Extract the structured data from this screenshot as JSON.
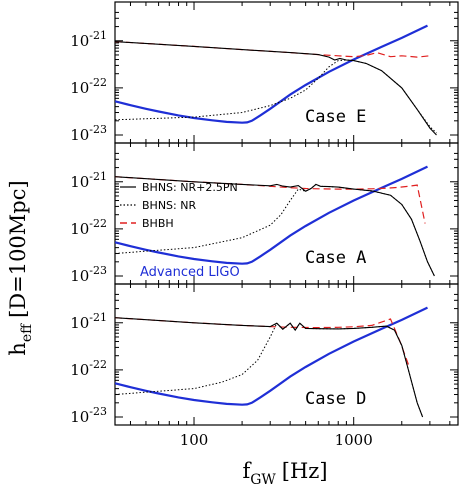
{
  "chart_data": {
    "type": "line",
    "xlabel": "f",
    "xlabel_sub": "GW",
    "xlabel_unit": "[Hz]",
    "ylabel": "h",
    "ylabel_sub": "eff",
    "ylabel_unit": "[D=100Mpc]",
    "x_scale": "log",
    "y_scale": "log",
    "xlim": [
      32,
      4500
    ],
    "ylim": [
      1e-23,
      4.5e-21
    ],
    "x_ticks": [
      100,
      1000
    ],
    "x_tick_labels": [
      "100",
      "1000"
    ],
    "y_ticks": [
      1e-23,
      1e-22,
      1e-21
    ],
    "y_tick_labels": [
      {
        "base": "10",
        "exp": "-23"
      },
      {
        "base": "10",
        "exp": "-22"
      },
      {
        "base": "10",
        "exp": "-21"
      }
    ],
    "grid": false,
    "legend_position": "top-left of middle panel",
    "legend": [
      {
        "label": "BHNS: NR+2.5PN",
        "color": "#000000",
        "style": "solid"
      },
      {
        "label": "BHNS: NR",
        "color": "#000000",
        "style": "dotted"
      },
      {
        "label": "BHBH",
        "color": "#e02020",
        "style": "dashed"
      }
    ],
    "annotation": {
      "text": "Advanced LIGO",
      "color": "#1f2fd6"
    },
    "ligo_curve": {
      "x": [
        32,
        40,
        50,
        60,
        80,
        100,
        130,
        160,
        200,
        215,
        230,
        260,
        300,
        400,
        500,
        700,
        1000,
        1500,
        2000,
        2900
      ],
      "y": [
        5.2e-23,
        4.3e-23,
        3.6e-23,
        3.15e-23,
        2.6e-23,
        2.3e-23,
        2.05e-23,
        1.9e-23,
        1.82e-23,
        1.85e-23,
        2e-23,
        2.6e-23,
        3.6e-23,
        7.2e-23,
        1.15e-22,
        2.2e-22,
        4e-22,
        7.5e-22,
        1.15e-21,
        2.1e-21
      ]
    },
    "panels": [
      {
        "label": "Case E",
        "bhbh": {
          "x": [
            32,
            100,
            200,
            400,
            600,
            800,
            1000,
            1200,
            1400,
            1700,
            2000,
            2500,
            3000
          ],
          "y": [
            9.6e-22,
            7.6e-22,
            6.5e-22,
            5.6e-22,
            5.1e-22,
            4.8e-22,
            4.6e-22,
            4.9e-22,
            5.6e-22,
            4.6e-22,
            4.8e-22,
            4.5e-22,
            4.8e-22
          ]
        },
        "bhns_nr25pn": {
          "x": [
            32,
            100,
            200,
            400,
            600,
            700,
            760,
            820,
            900,
            1000,
            1200,
            1500,
            2000,
            2500,
            3000,
            3300
          ],
          "y": [
            9.6e-22,
            7.6e-22,
            6.5e-22,
            5.6e-22,
            5.1e-22,
            4.5e-22,
            3.9e-22,
            4.2e-22,
            3.9e-22,
            3.8e-22,
            3.3e-22,
            2.3e-22,
            1e-22,
            3.5e-23,
            1.4e-23,
            1e-23
          ]
        },
        "bhns_nr": {
          "x": [
            32,
            100,
            200,
            300,
            400,
            500,
            600,
            700,
            800,
            900,
            1000,
            1200,
            1500,
            2000,
            2500,
            3000,
            3300
          ],
          "y": [
            2.1e-23,
            2.4e-23,
            3e-23,
            4.2e-23,
            6e-23,
            9e-23,
            1.6e-22,
            2.8e-22,
            3.8e-22,
            3.9e-22,
            3.8e-22,
            3.3e-22,
            2.3e-22,
            1e-22,
            3.5e-23,
            1.5e-23,
            1.1e-23
          ]
        }
      },
      {
        "label": "Case A",
        "bhbh": {
          "x": [
            32,
            100,
            200,
            300,
            400,
            500,
            600,
            800,
            1000,
            1300,
            1600,
            1900,
            2200,
            2500,
            2800
          ],
          "y": [
            1.28e-21,
            1e-21,
            8.8e-22,
            8e-22,
            7.5e-22,
            7.2e-22,
            7.1e-22,
            7e-22,
            7e-22,
            7.1e-22,
            7.3e-22,
            7.6e-22,
            8e-22,
            8.5e-22,
            1.3e-22
          ]
        },
        "bhns_nr25pn": {
          "x": [
            32,
            100,
            200,
            300,
            330,
            360,
            400,
            450,
            500,
            540,
            580,
            620,
            700,
            800,
            1000,
            1300,
            1700,
            2000,
            2300,
            2600,
            2900,
            3200
          ],
          "y": [
            1.28e-21,
            1e-21,
            8.8e-22,
            8.2e-22,
            8.8e-22,
            8.1e-22,
            7.7e-22,
            8.3e-22,
            6.3e-22,
            7.2e-22,
            8.8e-22,
            8e-22,
            7.9e-22,
            7.7e-22,
            7e-22,
            6.4e-22,
            5.2e-22,
            3.3e-22,
            1.6e-22,
            5.5e-23,
            2e-23,
            1e-23
          ]
        },
        "bhns_nr": {
          "x": [
            32,
            100,
            200,
            300,
            350,
            400,
            450,
            500,
            540,
            580,
            620,
            700,
            800,
            1000,
            1300,
            1700,
            2000,
            2300,
            2600,
            2900,
            3200
          ],
          "y": [
            3e-23,
            4e-23,
            6.5e-23,
            1.2e-22,
            2e-22,
            4e-22,
            7e-22,
            6.3e-22,
            7.2e-22,
            8.8e-22,
            8e-22,
            7.9e-22,
            7.7e-22,
            7e-22,
            6.4e-22,
            5.2e-22,
            3.3e-22,
            1.6e-22,
            5.5e-23,
            2e-23,
            1e-23
          ]
        }
      },
      {
        "label": "Case D",
        "bhbh": {
          "x": [
            32,
            100,
            200,
            300,
            400,
            600,
            800,
            1000,
            1300,
            1700,
            1950,
            2200
          ],
          "y": [
            1.28e-21,
            1e-21,
            8.8e-22,
            8.3e-22,
            8e-22,
            7.9e-22,
            8e-22,
            8.2e-22,
            8.8e-22,
            1.2e-21,
            4e-22,
            1.3e-22
          ]
        },
        "bhns_nr25pn": {
          "x": [
            32,
            100,
            200,
            300,
            330,
            360,
            400,
            430,
            460,
            500,
            600,
            800,
            1000,
            1300,
            1600,
            1800,
            2000,
            2200,
            2500,
            2700
          ],
          "y": [
            1.28e-21,
            1e-21,
            8.8e-22,
            8.3e-22,
            9.8e-22,
            7.3e-22,
            9.8e-22,
            7e-22,
            9.8e-22,
            7.6e-22,
            7.5e-22,
            7.4e-22,
            7.6e-22,
            8e-22,
            8.5e-22,
            7e-22,
            3.3e-22,
            1e-22,
            2e-23,
            1e-23
          ]
        },
        "bhns_nr": {
          "x": [
            32,
            100,
            150,
            200,
            250,
            300,
            330,
            360,
            400,
            430,
            460,
            500,
            600,
            800,
            1000,
            1300,
            1600,
            1800,
            2000,
            2200,
            2500,
            2700
          ],
          "y": [
            3e-23,
            4e-23,
            5.5e-23,
            8e-23,
            1.6e-22,
            5e-22,
            9.8e-22,
            7.3e-22,
            9.8e-22,
            7e-22,
            9.8e-22,
            7.6e-22,
            7.5e-22,
            7.4e-22,
            7.6e-22,
            8e-22,
            8.5e-22,
            7e-22,
            3.3e-22,
            1e-22,
            2e-23,
            1e-23
          ]
        }
      }
    ]
  },
  "colors": {
    "bhns": "#000000",
    "bhbh": "#e02020",
    "ligo": "#1f2fd6",
    "frame": "#000000"
  }
}
